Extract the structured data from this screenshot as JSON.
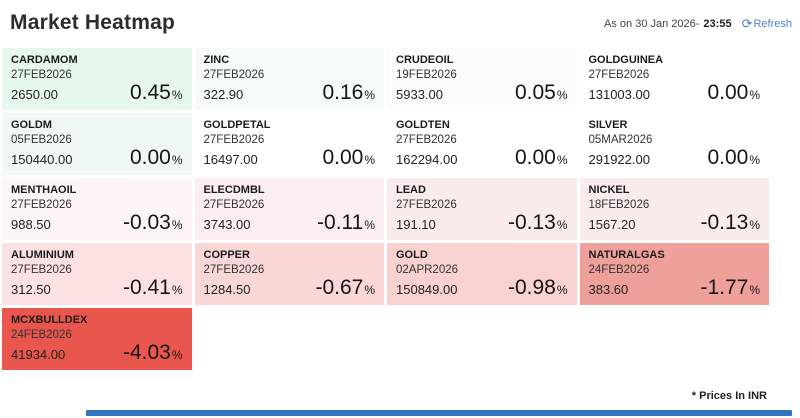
{
  "header": {
    "title": "Market Heatmap",
    "as_on_prefix": "As on 30 Jan 2026-",
    "as_on_time": "23:55",
    "refresh_label": "Refresh",
    "refresh_icon_glyph": "⟳",
    "refresh_color": "#4a7fd4"
  },
  "footer": {
    "note": "* Prices In INR"
  },
  "heatmap": {
    "percent_sign": "%",
    "columns": 4,
    "tiles": [
      {
        "name": "CARDAMOM",
        "expiry": "27FEB2026",
        "price": "2650.00",
        "change": "0.45",
        "bg": "#e6f7ec"
      },
      {
        "name": "ZINC",
        "expiry": "27FEB2026",
        "price": "322.90",
        "change": "0.16",
        "bg": "#f5fbf7"
      },
      {
        "name": "CRUDEOIL",
        "expiry": "19FEB2026",
        "price": "5933.00",
        "change": "0.05",
        "bg": "#fbfdfb"
      },
      {
        "name": "GOLDGUINEA",
        "expiry": "27FEB2026",
        "price": "131003.00",
        "change": "0.00",
        "bg": "#ffffff"
      },
      {
        "name": "GOLDM",
        "expiry": "05FEB2026",
        "price": "150440.00",
        "change": "0.00",
        "bg": "#f0f8f2"
      },
      {
        "name": "GOLDPETAL",
        "expiry": "27FEB2026",
        "price": "16497.00",
        "change": "0.00",
        "bg": "#ffffff"
      },
      {
        "name": "GOLDTEN",
        "expiry": "27FEB2026",
        "price": "162294.00",
        "change": "0.00",
        "bg": "#ffffff"
      },
      {
        "name": "SILVER",
        "expiry": "05MAR2026",
        "price": "291922.00",
        "change": "0.00",
        "bg": "#ffffff"
      },
      {
        "name": "MENTHAOIL",
        "expiry": "27FEB2026",
        "price": "988.50",
        "change": "-0.03",
        "bg": "#fdf4f4"
      },
      {
        "name": "ELECDMBL",
        "expiry": "27FEB2026",
        "price": "3743.00",
        "change": "-0.11",
        "bg": "#fbeeee"
      },
      {
        "name": "LEAD",
        "expiry": "27FEB2026",
        "price": "191.10",
        "change": "-0.13",
        "bg": "#fbecec"
      },
      {
        "name": "NICKEL",
        "expiry": "18FEB2026",
        "price": "1567.20",
        "change": "-0.13",
        "bg": "#fbecec"
      },
      {
        "name": "ALUMINIUM",
        "expiry": "27FEB2026",
        "price": "312.50",
        "change": "-0.41",
        "bg": "#fbe1e1"
      },
      {
        "name": "COPPER",
        "expiry": "27FEB2026",
        "price": "1284.50",
        "change": "-0.67",
        "bg": "#f9d7d7"
      },
      {
        "name": "GOLD",
        "expiry": "02APR2026",
        "price": "150849.00",
        "change": "-0.98",
        "bg": "#f8d1d1"
      },
      {
        "name": "NATURALGAS",
        "expiry": "24FEB2026",
        "price": "383.60",
        "change": "-1.77",
        "bg": "#efa09b"
      },
      {
        "name": "MCXBULLDEX",
        "expiry": "24FEB2026",
        "price": "41934.00",
        "change": "-4.03",
        "bg": "#e9564e"
      }
    ]
  },
  "chart_data": {
    "type": "heatmap",
    "title": "Market Heatmap",
    "timestamp": "As on 30 Jan 2026- 23:55",
    "unit_note": "* Prices In INR",
    "layout": {
      "columns": 4,
      "color_scale": "green = positive change, white = flat, red = negative change"
    },
    "cells": [
      {
        "symbol": "CARDAMOM",
        "expiry": "27FEB2026",
        "price": 2650.0,
        "change_pct": 0.45
      },
      {
        "symbol": "ZINC",
        "expiry": "27FEB2026",
        "price": 322.9,
        "change_pct": 0.16
      },
      {
        "symbol": "CRUDEOIL",
        "expiry": "19FEB2026",
        "price": 5933.0,
        "change_pct": 0.05
      },
      {
        "symbol": "GOLDGUINEA",
        "expiry": "27FEB2026",
        "price": 131003.0,
        "change_pct": 0.0
      },
      {
        "symbol": "GOLDM",
        "expiry": "05FEB2026",
        "price": 150440.0,
        "change_pct": 0.0
      },
      {
        "symbol": "GOLDPETAL",
        "expiry": "27FEB2026",
        "price": 16497.0,
        "change_pct": 0.0
      },
      {
        "symbol": "GOLDTEN",
        "expiry": "27FEB2026",
        "price": 162294.0,
        "change_pct": 0.0
      },
      {
        "symbol": "SILVER",
        "expiry": "05MAR2026",
        "price": 291922.0,
        "change_pct": 0.0
      },
      {
        "symbol": "MENTHAOIL",
        "expiry": "27FEB2026",
        "price": 988.5,
        "change_pct": -0.03
      },
      {
        "symbol": "ELECDMBL",
        "expiry": "27FEB2026",
        "price": 3743.0,
        "change_pct": -0.11
      },
      {
        "symbol": "LEAD",
        "expiry": "27FEB2026",
        "price": 191.1,
        "change_pct": -0.13
      },
      {
        "symbol": "NICKEL",
        "expiry": "18FEB2026",
        "price": 1567.2,
        "change_pct": -0.13
      },
      {
        "symbol": "ALUMINIUM",
        "expiry": "27FEB2026",
        "price": 312.5,
        "change_pct": -0.41
      },
      {
        "symbol": "COPPER",
        "expiry": "27FEB2026",
        "price": 1284.5,
        "change_pct": -0.67
      },
      {
        "symbol": "GOLD",
        "expiry": "02APR2026",
        "price": 150849.0,
        "change_pct": -0.98
      },
      {
        "symbol": "NATURALGAS",
        "expiry": "24FEB2026",
        "price": 383.6,
        "change_pct": -1.77
      },
      {
        "symbol": "MCXBULLDEX",
        "expiry": "24FEB2026",
        "price": 41934.0,
        "change_pct": -4.03
      }
    ]
  }
}
